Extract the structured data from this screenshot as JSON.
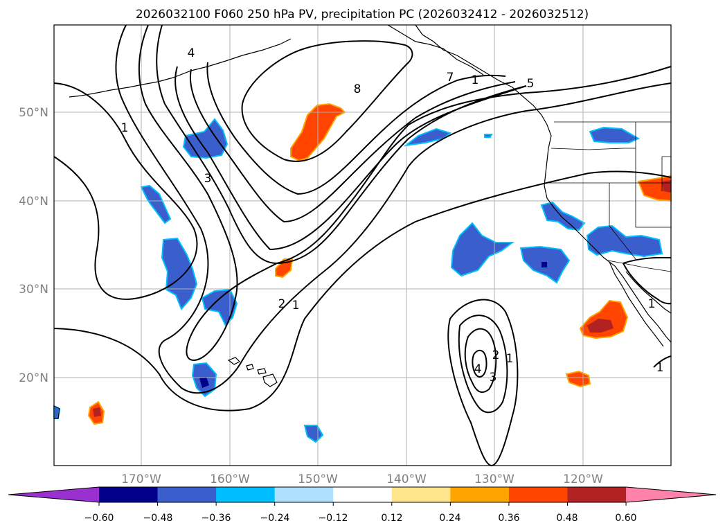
{
  "title": "2026032100 F060 250 hPa PV, precipitation PC (2026032412 - 2026032512)",
  "map": {
    "lat_labels": [
      "50°N",
      "40°N",
      "30°N",
      "20°N"
    ],
    "lon_labels": [
      "170°W",
      "160°W",
      "150°W",
      "140°W",
      "130°W",
      "120°W"
    ],
    "contour_labels": [
      "4",
      "3",
      "1",
      "8",
      "7",
      "5",
      "2",
      "1",
      "1",
      "4",
      "2",
      "3",
      "1",
      "1",
      "1"
    ]
  },
  "colorbar": {
    "colors": [
      "#9b30d0",
      "#00008b",
      "#3a5fcd",
      "#00bfff",
      "#b0e2ff",
      "#ffffff",
      "#ffe68c",
      "#ffa500",
      "#ff4500",
      "#b22222",
      "#ff82ab"
    ],
    "tick_labels": [
      "−0.60",
      "−0.48",
      "−0.36",
      "−0.24",
      "−0.12",
      "0.12",
      "0.24",
      "0.36",
      "0.48",
      "0.60"
    ]
  },
  "shading_colors": {
    "neg_light": "#b0e2ff",
    "neg_mid": "#00bfff",
    "neg": "#3a5fcd",
    "neg_strong": "#00008b",
    "pos_light": "#ffe68c",
    "pos_mid": "#ffa500",
    "pos": "#ff4500",
    "pos_strong": "#b22222"
  }
}
